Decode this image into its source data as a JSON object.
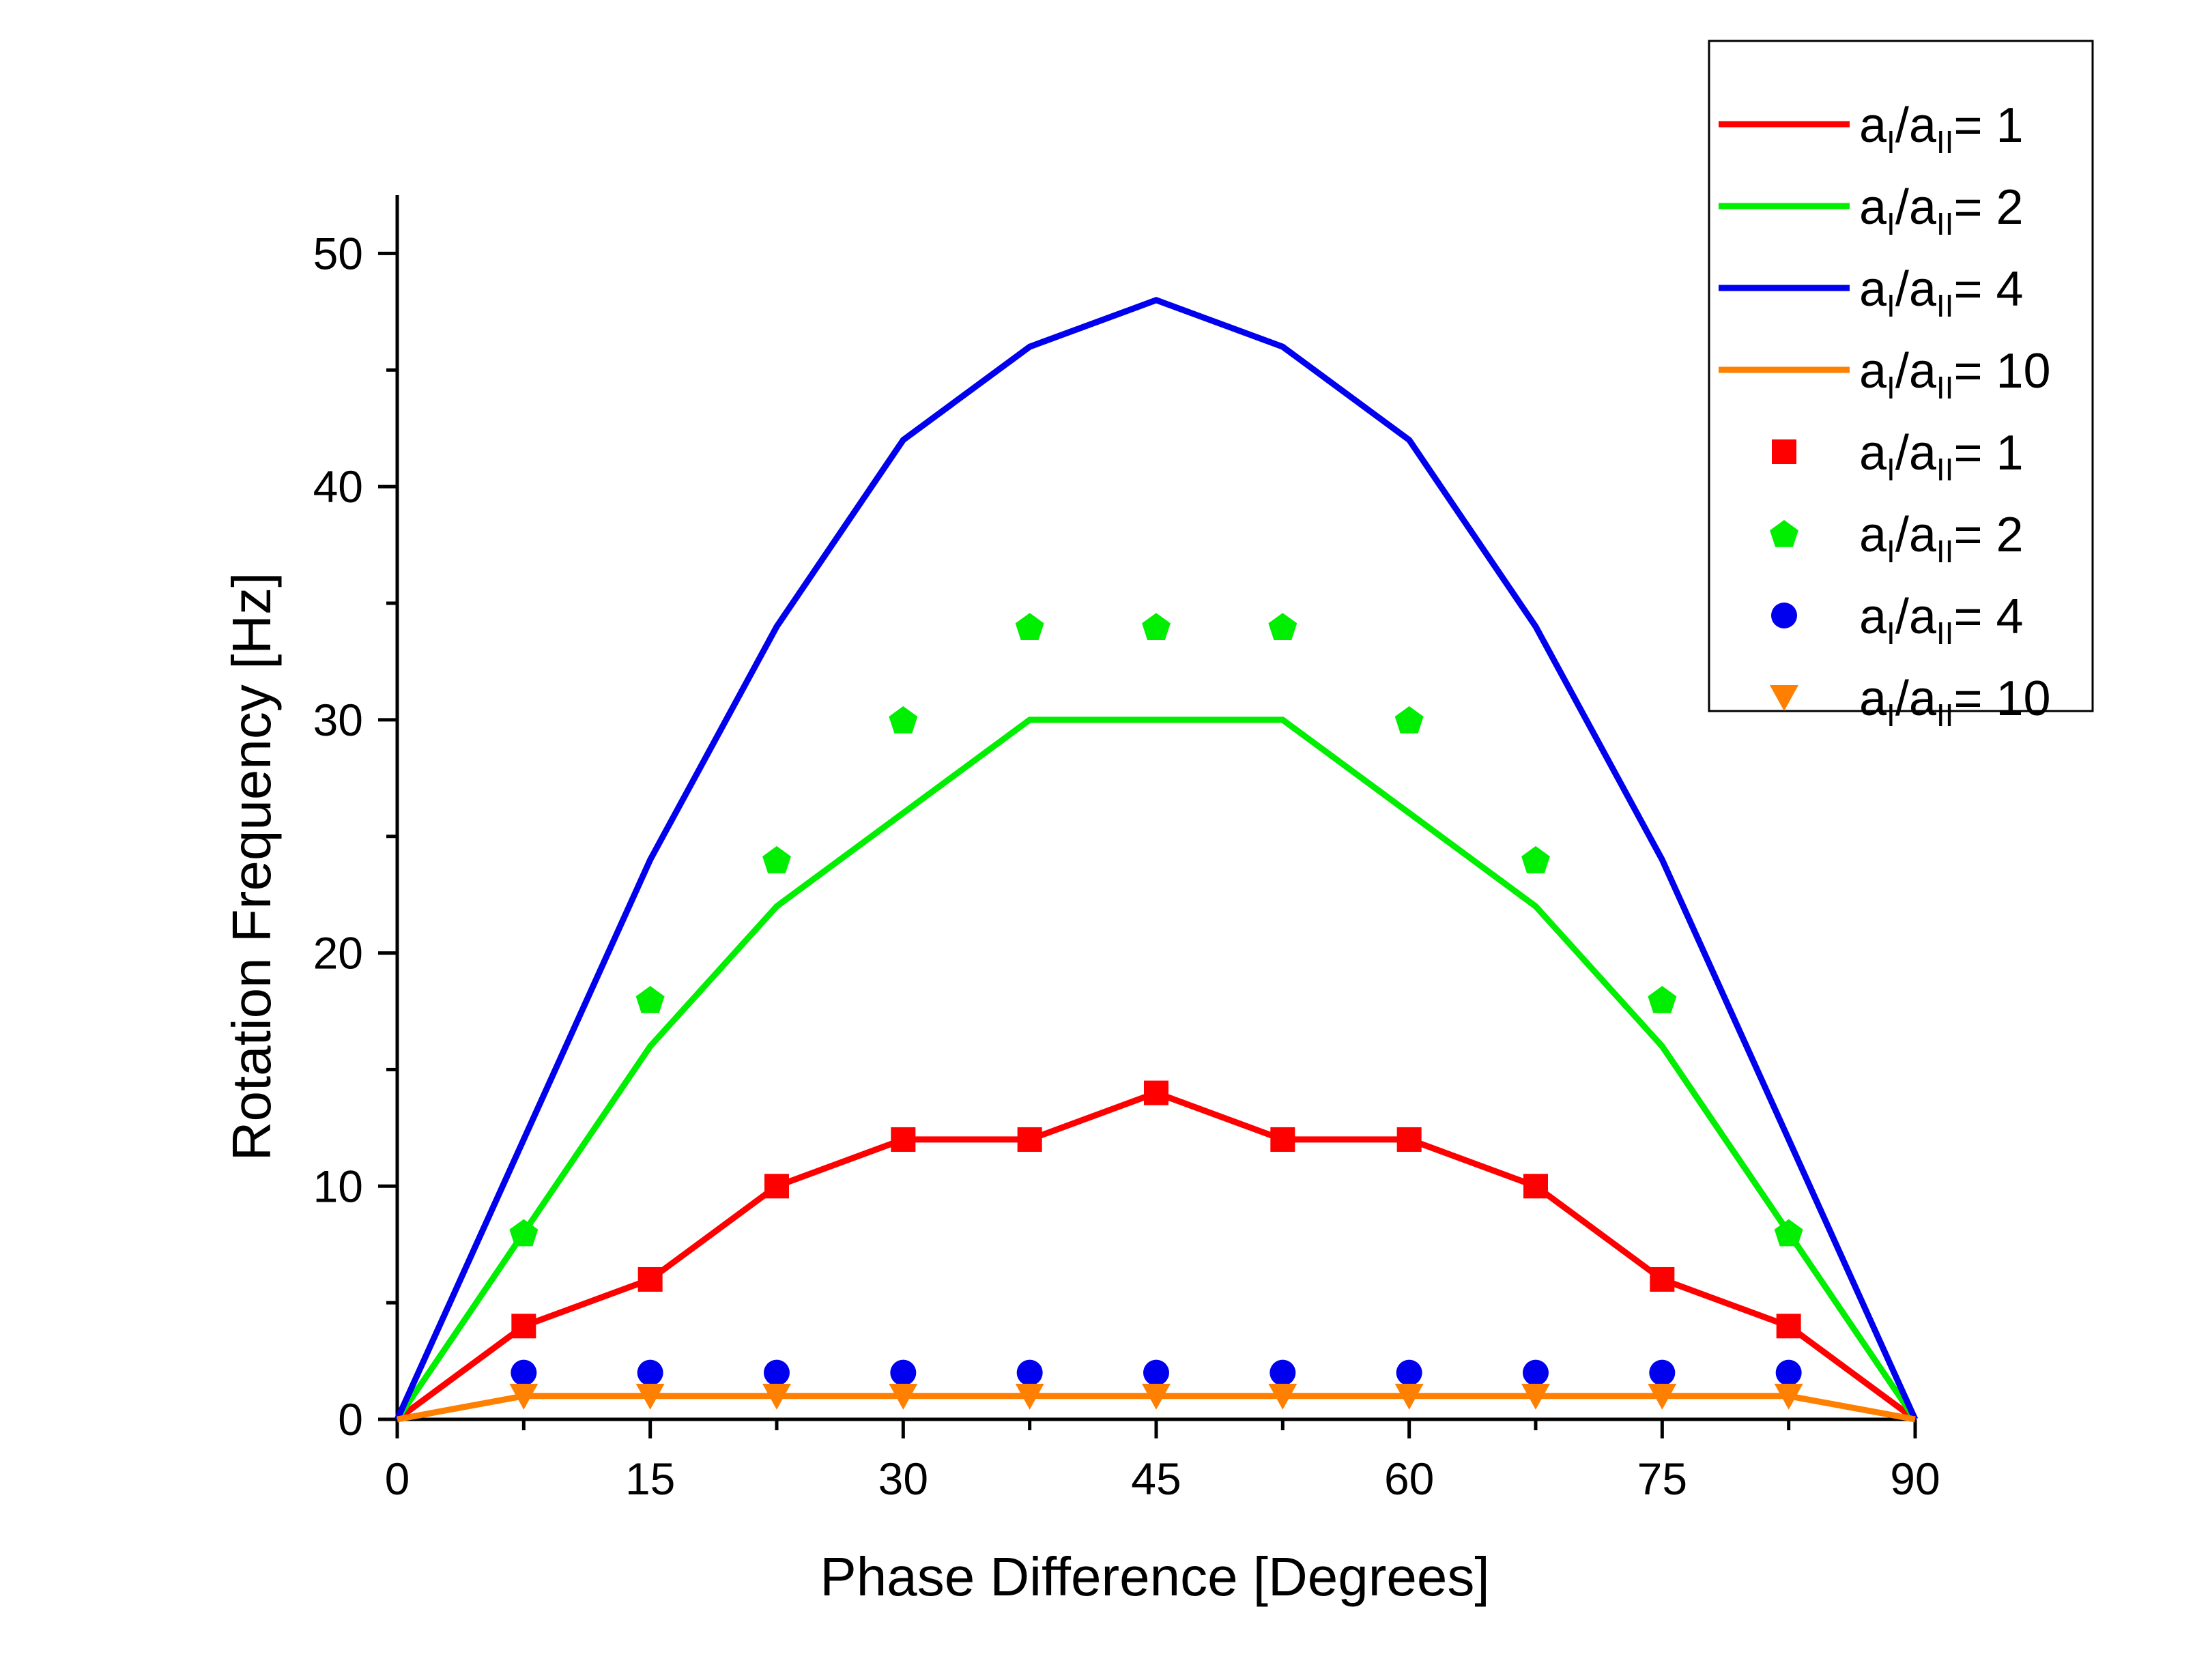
{
  "chart_data": {
    "type": "line",
    "title": "",
    "xlabel": "Phase Difference [Degrees]",
    "ylabel": "Rotation Frequency [Hz]",
    "xlim": [
      0,
      90
    ],
    "ylim": [
      0,
      52.5
    ],
    "x_ticks": [
      0,
      15,
      30,
      45,
      60,
      75,
      90
    ],
    "y_ticks": [
      0,
      10,
      20,
      30,
      40,
      50
    ],
    "grid": false,
    "legend_position": "top-right",
    "x": [
      0,
      7.5,
      15,
      22.5,
      30,
      37.5,
      45,
      52.5,
      60,
      67.5,
      75,
      82.5,
      90
    ],
    "series": [
      {
        "name": "aI/aII= 1",
        "kind": "line",
        "color": "#ff0000",
        "values": [
          0,
          4,
          6,
          10,
          12,
          12,
          14,
          12,
          12,
          10,
          6,
          4,
          0
        ]
      },
      {
        "name": "aI/aII= 2",
        "kind": "line",
        "color": "#00ee00",
        "values": [
          0,
          8,
          16,
          22,
          26,
          30,
          30,
          30,
          26,
          22,
          16,
          8,
          0
        ]
      },
      {
        "name": "aI/aII= 4",
        "kind": "line",
        "color": "#0000ee",
        "values": [
          0,
          12,
          24,
          34,
          42,
          46,
          48,
          46,
          42,
          34,
          24,
          12,
          0
        ]
      },
      {
        "name": "aI/aII= 10",
        "kind": "line",
        "color": "#ff8000",
        "values": [
          0,
          1,
          1,
          1,
          1,
          1,
          1,
          1,
          1,
          1,
          1,
          1,
          0
        ]
      },
      {
        "name": "aI/aII= 1",
        "kind": "scatter",
        "marker": "square",
        "color": "#ff0000",
        "x": [
          7.5,
          15,
          22.5,
          30,
          37.5,
          45,
          52.5,
          60,
          67.5,
          75,
          82.5
        ],
        "values": [
          4,
          6,
          10,
          12,
          12,
          14,
          12,
          12,
          10,
          6,
          4
        ]
      },
      {
        "name": "aI/aII= 2",
        "kind": "scatter",
        "marker": "pentagon",
        "color": "#00ee00",
        "x": [
          7.5,
          15,
          22.5,
          30,
          37.5,
          45,
          52.5,
          60,
          67.5,
          75,
          82.5
        ],
        "values": [
          8,
          18,
          24,
          30,
          34,
          34,
          34,
          30,
          24,
          18,
          8
        ]
      },
      {
        "name": "aI/aII= 4",
        "kind": "scatter",
        "marker": "circle",
        "color": "#0000ee",
        "x": [
          7.5,
          15,
          22.5,
          30,
          37.5,
          45,
          52.5,
          60,
          67.5,
          75,
          82.5
        ],
        "values": [
          2,
          2,
          2,
          2,
          2,
          2,
          2,
          2,
          2,
          2,
          2
        ]
      },
      {
        "name": "aI/aII= 10",
        "kind": "scatter",
        "marker": "triangle-down",
        "color": "#ff8000",
        "x": [
          7.5,
          15,
          22.5,
          30,
          37.5,
          45,
          52.5,
          60,
          67.5,
          75,
          82.5
        ],
        "values": [
          1,
          1,
          1,
          1,
          1,
          1,
          1,
          1,
          1,
          1,
          1
        ]
      }
    ]
  }
}
